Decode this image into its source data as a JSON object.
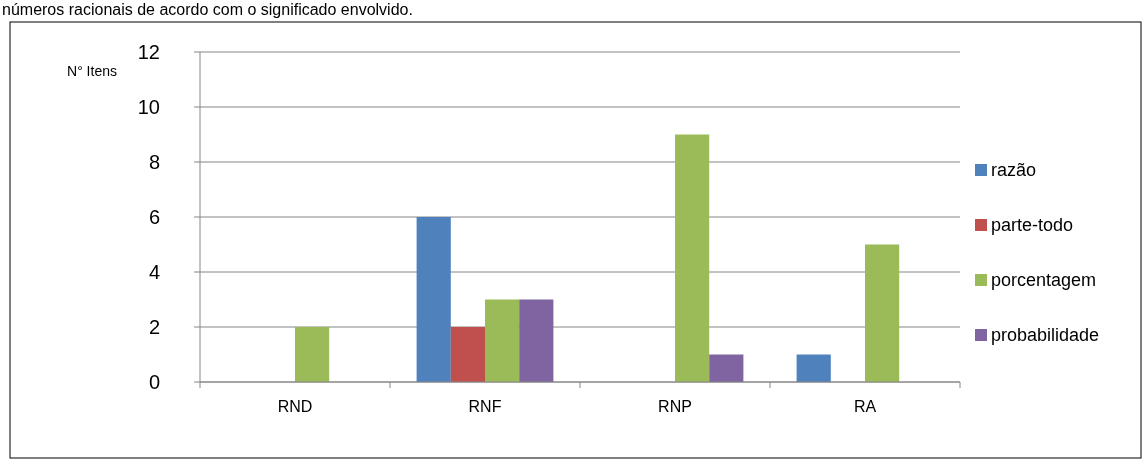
{
  "chart_data": {
    "type": "bar",
    "ylabel": "N° Itens",
    "annotations": [
      "números racionais de acordo com o significado envolvido."
    ],
    "categories": [
      "RND",
      "RNF",
      "RNP",
      "RA"
    ],
    "series": [
      {
        "name": "razão",
        "color": "#4f81bd",
        "values": [
          0,
          6,
          0,
          1
        ]
      },
      {
        "name": "parte-todo",
        "color": "#c0504d",
        "values": [
          0,
          2,
          0,
          0
        ]
      },
      {
        "name": "porcentagem",
        "color": "#9bbb59",
        "values": [
          2,
          3,
          9,
          5
        ]
      },
      {
        "name": "probabilidade",
        "color": "#8064a2",
        "values": [
          0,
          3,
          1,
          0
        ]
      }
    ],
    "ylim": [
      0,
      12
    ],
    "yticks": [
      0,
      2,
      4,
      6,
      8,
      10,
      12
    ],
    "grid": "y",
    "legend": "right"
  }
}
